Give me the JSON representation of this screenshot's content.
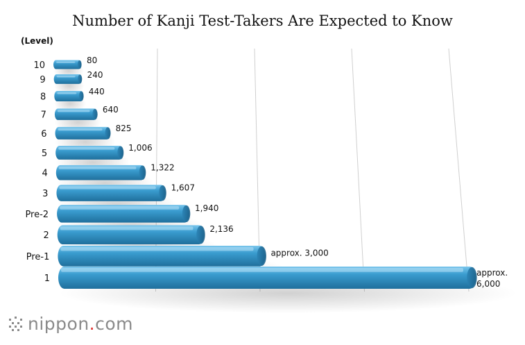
{
  "chart_data": {
    "type": "bar",
    "orientation": "horizontal",
    "title": "Number of Kanji Test-Takers Are Expected to Know",
    "axis_title": "(Level)",
    "categories": [
      "10",
      "9",
      "8",
      "7",
      "6",
      "5",
      "4",
      "3",
      "Pre-2",
      "2",
      "Pre-1",
      "1"
    ],
    "values": [
      80,
      240,
      440,
      640,
      825,
      1006,
      1322,
      1607,
      1940,
      2136,
      3000,
      6000
    ],
    "data_labels": [
      "80",
      "240",
      "440",
      "640",
      "825",
      "1,006",
      "1,322",
      "1,607",
      "1,940",
      "2,136",
      "approx. 3,000",
      "approx.\n6,000"
    ],
    "xlim": [
      0,
      6000
    ],
    "gridlines": true,
    "bar_color": "#3a9ccf"
  },
  "footer": {
    "brand_prefix": "nippon",
    "brand_dot": ".",
    "brand_suffix": "com"
  }
}
